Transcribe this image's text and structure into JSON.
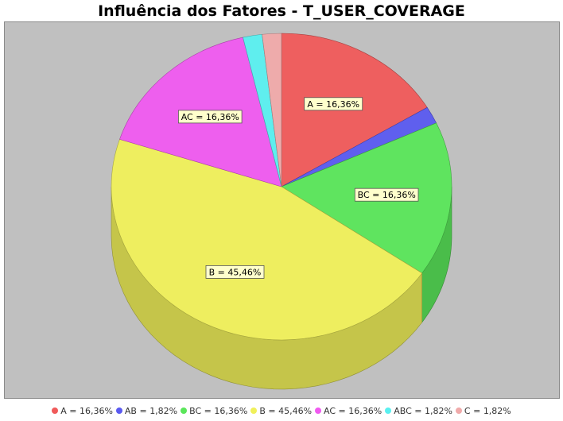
{
  "chart_data": {
    "type": "pie",
    "title": "Influência dos Fatores - T_USER_COVERAGE",
    "three_d": true,
    "categories": [
      "A",
      "AB",
      "BC",
      "B",
      "AC",
      "ABC",
      "C"
    ],
    "values": [
      16.36,
      1.82,
      16.36,
      45.46,
      16.36,
      1.82,
      1.82
    ],
    "colors": [
      "#f05a5a",
      "#5a5af0",
      "#5ae65a",
      "#f0f05a",
      "#f05af0",
      "#5af0f0",
      "#f0aaaa"
    ],
    "slice_labels": [
      "A = 16,36%",
      "AB = 1,82%",
      "BC = 16,36%",
      "B = 45,46%",
      "AC = 16,36%",
      "ABC = 1,82%",
      "C = 1,82%"
    ],
    "labeled_slices": [
      "A",
      "BC",
      "B",
      "AC"
    ],
    "legend_entries": [
      "A = 16,36%",
      "AB = 1,82%",
      "BC = 16,36%",
      "B = 45,46%",
      "AC = 16,36%",
      "ABC = 1,82%",
      "C = 1,82%"
    ],
    "legend_position": "bottom",
    "plot_background": "#c0c0c0"
  }
}
